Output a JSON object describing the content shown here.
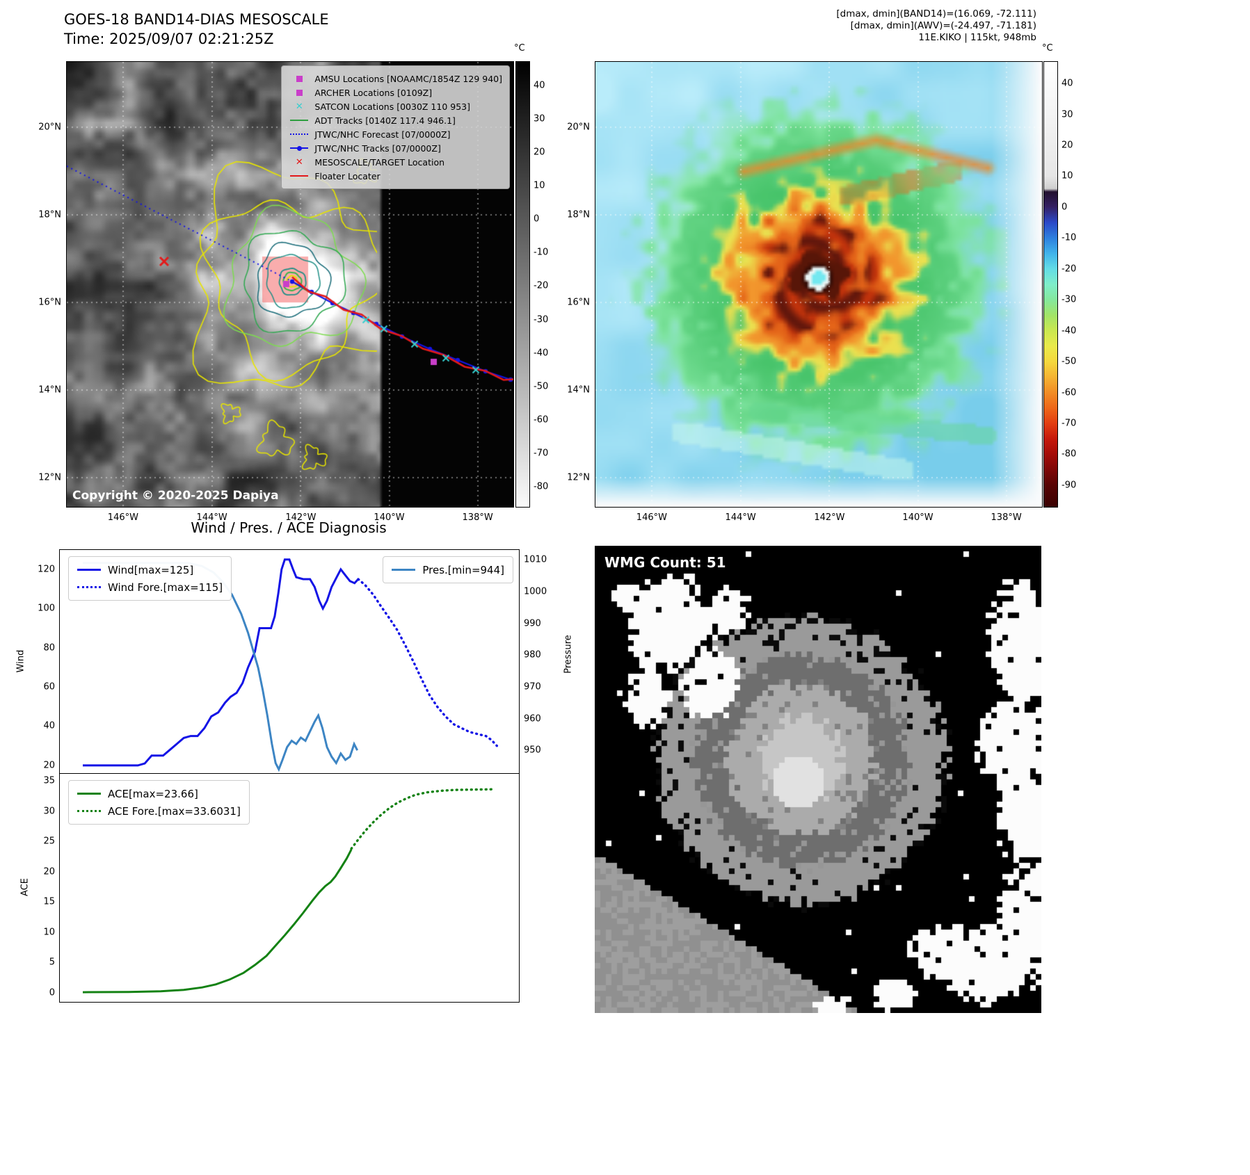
{
  "band14": {
    "title": "GOES-18 BAND14-DIAS MESOSCALE",
    "time_label": "Time: 2025/09/07 02:21:25Z",
    "copyright": "Copyright © 2020-2025 Dapiya",
    "x_ticks": [
      "146°W",
      "144°W",
      "142°W",
      "140°W",
      "138°W"
    ],
    "y_ticks": [
      "20°N",
      "18°N",
      "16°N",
      "14°N",
      "12°N"
    ],
    "legend": [
      {
        "label": "AMSU Locations [NOAAMC/1854Z 129 940]",
        "marker": "square",
        "color": "#c93ec9"
      },
      {
        "label": "ARCHER Locations [0109Z]",
        "marker": "square",
        "color": "#c93ec9"
      },
      {
        "label": "SATCON Locations [0030Z 110 953]",
        "marker": "x",
        "color": "#35cfcf"
      },
      {
        "label": "ADT Tracks [0140Z 117.4 946.1]",
        "marker": "line",
        "color": "#2e9e3f"
      },
      {
        "label": "JTWC/NHC Forecast [07/0000Z]",
        "marker": "dotted",
        "color": "#1414e6"
      },
      {
        "label": "JTWC/NHC Tracks [07/0000Z]",
        "marker": "line-dot",
        "color": "#1414e6"
      },
      {
        "label": "MESOSCALE/TARGET Location",
        "marker": "x",
        "color": "#e31a1a"
      },
      {
        "label": "Floater Locater",
        "marker": "line",
        "color": "#e31a1a"
      }
    ],
    "colorbar": {
      "unit": "°C",
      "range": [
        47,
        -86
      ],
      "ticks": [
        40,
        30,
        20,
        10,
        0,
        -10,
        -20,
        -30,
        -40,
        -50,
        -60,
        -70,
        -80
      ]
    }
  },
  "awv": {
    "header_lines": [
      "[dmax, dmin](BAND14)=(16.069, -72.111)",
      "[dmax, dmin](AWV)=(-24.497, -71.181)",
      "11E.KIKO | 115kt, 948mb"
    ],
    "x_ticks": [
      "146°W",
      "144°W",
      "142°W",
      "140°W",
      "138°W"
    ],
    "y_ticks": [
      "20°N",
      "18°N",
      "16°N",
      "14°N",
      "12°N"
    ],
    "colorbar": {
      "unit": "°C",
      "range": [
        47,
        -97
      ],
      "ticks": [
        40,
        30,
        20,
        10,
        0,
        -10,
        -20,
        -30,
        -40,
        -50,
        -60,
        -70,
        -80,
        -90
      ],
      "stops": [
        {
          "v": 47,
          "c": "#ffffff"
        },
        {
          "v": 10,
          "c": "#e6e6e6"
        },
        {
          "v": 6,
          "c": "#cfcfcf"
        },
        {
          "v": 5,
          "c": "#22102e"
        },
        {
          "v": 0,
          "c": "#342063"
        },
        {
          "v": -5,
          "c": "#2b49c8"
        },
        {
          "v": -10,
          "c": "#2e80de"
        },
        {
          "v": -15,
          "c": "#41b4ea"
        },
        {
          "v": -20,
          "c": "#63dce6"
        },
        {
          "v": -25,
          "c": "#7feeca"
        },
        {
          "v": -30,
          "c": "#85e89c"
        },
        {
          "v": -35,
          "c": "#a2e468"
        },
        {
          "v": -40,
          "c": "#cae850"
        },
        {
          "v": -45,
          "c": "#eaea4b"
        },
        {
          "v": -50,
          "c": "#f5d83d"
        },
        {
          "v": -55,
          "c": "#f5b433"
        },
        {
          "v": -60,
          "c": "#f28d25"
        },
        {
          "v": -65,
          "c": "#ee6719"
        },
        {
          "v": -70,
          "c": "#e23d11"
        },
        {
          "v": -75,
          "c": "#c6190b"
        },
        {
          "v": -80,
          "c": "#a40c08"
        },
        {
          "v": -85,
          "c": "#7d0707"
        },
        {
          "v": -90,
          "c": "#580404"
        },
        {
          "v": -97,
          "c": "#3a0202"
        }
      ]
    }
  },
  "wmg": {
    "label": "WMG Count: 51"
  },
  "chart_data": [
    {
      "type": "line",
      "title": "Wind / Pres. / ACE Diagnosis",
      "ylabel_left": "Wind",
      "ylabel_right": "Pressure",
      "y_left_ticks": [
        120,
        100,
        80,
        60,
        40,
        20
      ],
      "y_right_ticks": [
        1010,
        1000,
        990,
        980,
        970,
        960,
        950
      ],
      "y_left_range": [
        15.7,
        129.9
      ],
      "y_right_range": [
        942.6,
        1013.1
      ],
      "series": [
        {
          "name": "Wind[max=125]",
          "style": "solid",
          "color": "#1414e6",
          "axis": "left",
          "points": [
            [
              0.05,
              20
            ],
            [
              0.17,
              20
            ],
            [
              0.185,
              21
            ],
            [
              0.2,
              25
            ],
            [
              0.225,
              25
            ],
            [
              0.24,
              28
            ],
            [
              0.255,
              31
            ],
            [
              0.27,
              34
            ],
            [
              0.285,
              35
            ],
            [
              0.3,
              35
            ],
            [
              0.315,
              39
            ],
            [
              0.33,
              45
            ],
            [
              0.345,
              47
            ],
            [
              0.36,
              52
            ],
            [
              0.372,
              55
            ],
            [
              0.385,
              57
            ],
            [
              0.398,
              62
            ],
            [
              0.41,
              70
            ],
            [
              0.425,
              78
            ],
            [
              0.435,
              90
            ],
            [
              0.46,
              90
            ],
            [
              0.468,
              96
            ],
            [
              0.476,
              108
            ],
            [
              0.483,
              120
            ],
            [
              0.49,
              125
            ],
            [
              0.5,
              125
            ],
            [
              0.508,
              120
            ],
            [
              0.515,
              116
            ],
            [
              0.53,
              115
            ],
            [
              0.545,
              115
            ],
            [
              0.555,
              111
            ],
            [
              0.565,
              104
            ],
            [
              0.573,
              100
            ],
            [
              0.582,
              104
            ],
            [
              0.592,
              111
            ],
            [
              0.603,
              116
            ],
            [
              0.612,
              120
            ],
            [
              0.622,
              117
            ],
            [
              0.632,
              114
            ],
            [
              0.642,
              113
            ],
            [
              0.65,
              115
            ]
          ]
        },
        {
          "name": "Wind Fore.[max=115]",
          "style": "dotted",
          "color": "#1414e6",
          "axis": "left",
          "points": [
            [
              0.65,
              115
            ],
            [
              0.665,
              112
            ],
            [
              0.683,
              107
            ],
            [
              0.7,
              101
            ],
            [
              0.718,
              95
            ],
            [
              0.735,
              89
            ],
            [
              0.753,
              81
            ],
            [
              0.77,
              73
            ],
            [
              0.788,
              64
            ],
            [
              0.805,
              56
            ],
            [
              0.822,
              50
            ],
            [
              0.84,
              45
            ],
            [
              0.858,
              41
            ],
            [
              0.875,
              39
            ],
            [
              0.893,
              37
            ],
            [
              0.91,
              36
            ],
            [
              0.928,
              35
            ],
            [
              0.94,
              33
            ],
            [
              0.952,
              30
            ]
          ]
        },
        {
          "name": "Pres.[min=944]",
          "style": "solid",
          "color": "#3d85c4",
          "axis": "right",
          "points": [
            [
              0.05,
              1009
            ],
            [
              0.28,
              1009
            ],
            [
              0.31,
              1008
            ],
            [
              0.335,
              1006
            ],
            [
              0.355,
              1003
            ],
            [
              0.375,
              999
            ],
            [
              0.395,
              993
            ],
            [
              0.41,
              987
            ],
            [
              0.422,
              981
            ],
            [
              0.432,
              976
            ],
            [
              0.442,
              969
            ],
            [
              0.452,
              961
            ],
            [
              0.462,
              952
            ],
            [
              0.47,
              946
            ],
            [
              0.477,
              944
            ],
            [
              0.485,
              947
            ],
            [
              0.495,
              951
            ],
            [
              0.505,
              953
            ],
            [
              0.515,
              952
            ],
            [
              0.525,
              954
            ],
            [
              0.535,
              953
            ],
            [
              0.545,
              956
            ],
            [
              0.555,
              959
            ],
            [
              0.563,
              961
            ],
            [
              0.572,
              957
            ],
            [
              0.582,
              951
            ],
            [
              0.592,
              948
            ],
            [
              0.602,
              946
            ],
            [
              0.612,
              949
            ],
            [
              0.622,
              947
            ],
            [
              0.632,
              948
            ],
            [
              0.641,
              952
            ],
            [
              0.648,
              950
            ]
          ]
        }
      ],
      "legend_left": [
        0,
        1
      ],
      "legend_right": [
        2
      ]
    },
    {
      "type": "line",
      "ylabel_left": "ACE",
      "y_left_ticks": [
        35,
        30,
        25,
        20,
        15,
        10,
        5,
        0
      ],
      "y_left_range": [
        -1.49,
        36.15
      ],
      "series": [
        {
          "name": "ACE[max=23.66]",
          "style": "solid",
          "color": "#148214",
          "axis": "left",
          "points": [
            [
              0.05,
              0.1
            ],
            [
              0.15,
              0.15
            ],
            [
              0.22,
              0.25
            ],
            [
              0.27,
              0.5
            ],
            [
              0.31,
              0.9
            ],
            [
              0.34,
              1.4
            ],
            [
              0.37,
              2.2
            ],
            [
              0.4,
              3.3
            ],
            [
              0.425,
              4.6
            ],
            [
              0.45,
              6.1
            ],
            [
              0.47,
              7.8
            ],
            [
              0.49,
              9.5
            ],
            [
              0.51,
              11.3
            ],
            [
              0.53,
              13.2
            ],
            [
              0.55,
              15.2
            ],
            [
              0.565,
              16.6
            ],
            [
              0.578,
              17.6
            ],
            [
              0.59,
              18.3
            ],
            [
              0.6,
              19.2
            ],
            [
              0.612,
              20.6
            ],
            [
              0.625,
              22.2
            ],
            [
              0.635,
              23.66
            ]
          ]
        },
        {
          "name": "ACE Fore.[max=33.6031]",
          "style": "dotted",
          "color": "#148214",
          "axis": "left",
          "points": [
            [
              0.635,
              23.8
            ],
            [
              0.65,
              25.3
            ],
            [
              0.665,
              26.7
            ],
            [
              0.682,
              28.1
            ],
            [
              0.7,
              29.4
            ],
            [
              0.718,
              30.5
            ],
            [
              0.736,
              31.4
            ],
            [
              0.755,
              32.1
            ],
            [
              0.775,
              32.7
            ],
            [
              0.8,
              33.1
            ],
            [
              0.83,
              33.35
            ],
            [
              0.86,
              33.5
            ],
            [
              0.9,
              33.55
            ],
            [
              0.945,
              33.6
            ]
          ]
        }
      ],
      "legend_left": [
        0,
        1
      ]
    }
  ]
}
